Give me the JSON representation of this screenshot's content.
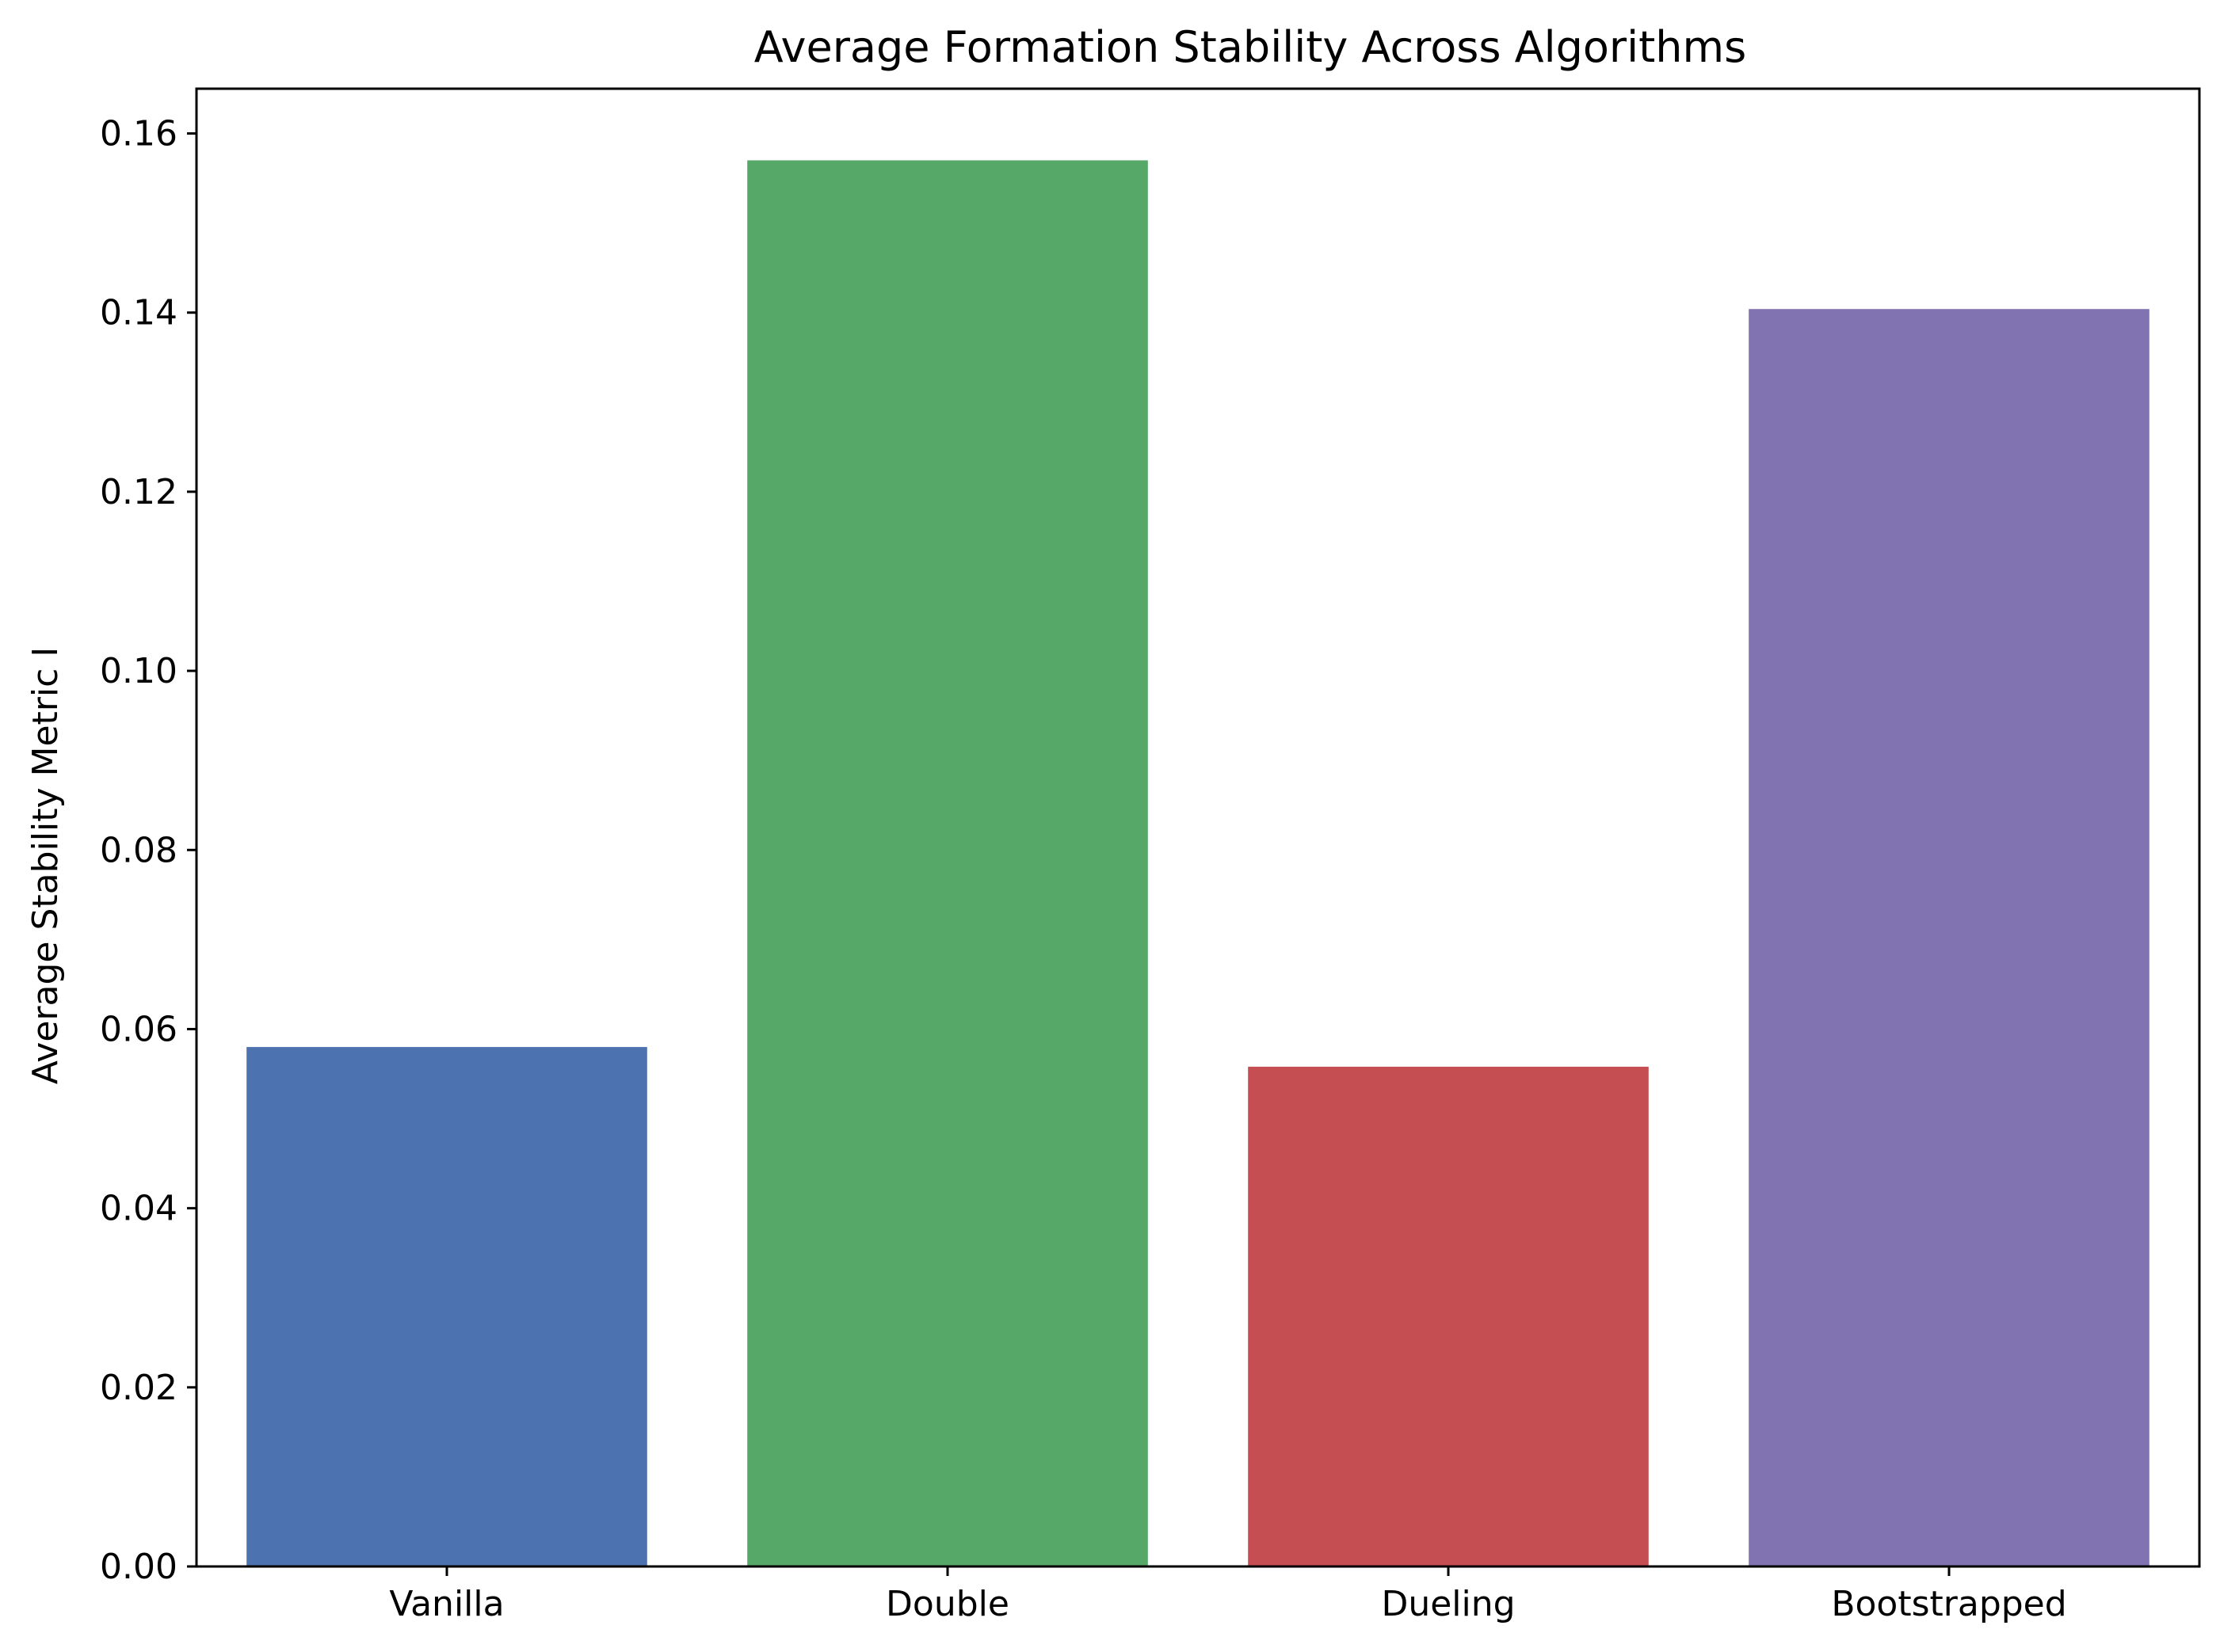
{
  "chart_data": {
    "type": "bar",
    "title": "Average Formation Stability Across Algorithms",
    "xlabel": "",
    "ylabel": "Average Stability Metric I",
    "categories": [
      "Vanilla",
      "Double",
      "Dueling",
      "Bootstrapped"
    ],
    "values": [
      0.058,
      0.157,
      0.0558,
      0.1404
    ],
    "colors": [
      "#4c72b0",
      "#55a868",
      "#c44e52",
      "#8172b2"
    ],
    "ylim": [
      0,
      0.165
    ],
    "yticks": [
      0.0,
      0.02,
      0.04,
      0.06,
      0.08,
      0.1,
      0.12,
      0.14,
      0.16
    ],
    "ytick_labels": [
      "0.00",
      "0.02",
      "0.04",
      "0.06",
      "0.08",
      "0.10",
      "0.12",
      "0.14",
      "0.16"
    ],
    "grid": false,
    "legend": "none"
  }
}
